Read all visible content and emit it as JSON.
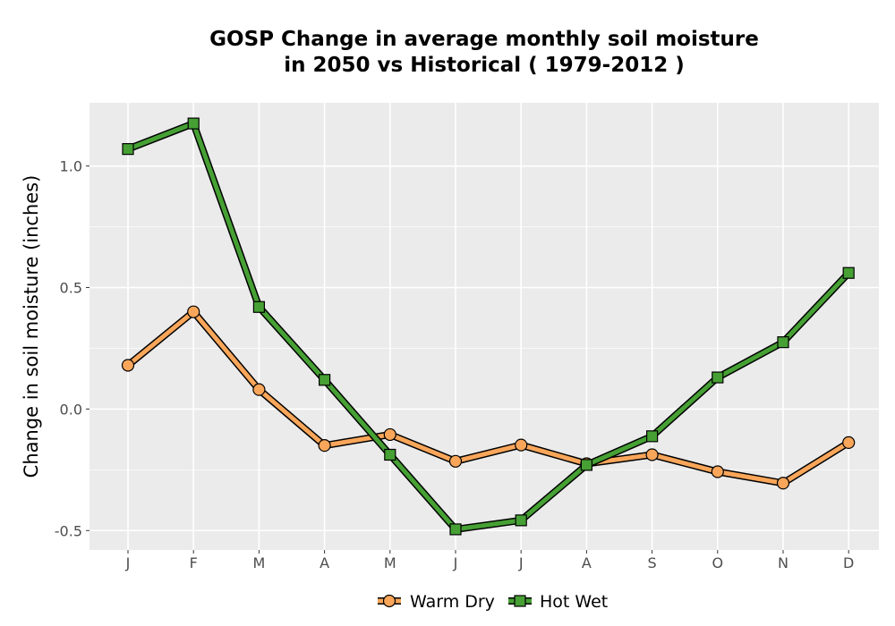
{
  "chart_data": {
    "type": "line",
    "title": "GOSP  Change in average monthly soil moisture\nin 2050 vs Historical ( 1979-2012 )",
    "xlabel": "",
    "ylabel": "Change in soil moisture (inches)",
    "categories": [
      "J",
      "F",
      "M",
      "A",
      "M",
      "J",
      "J",
      "A",
      "S",
      "O",
      "N",
      "D"
    ],
    "yticks": [
      -0.5,
      0.0,
      0.5,
      1.0
    ],
    "ytick_labels": [
      "-0.5",
      "0.0",
      "0.5",
      "1.0"
    ],
    "ylim": [
      -0.58,
      1.26
    ],
    "grid": true,
    "legend_position": "bottom",
    "series": [
      {
        "name": "Warm Dry",
        "color": "#f9a65a",
        "marker": "circle",
        "values": [
          0.18,
          0.4,
          0.08,
          -0.15,
          -0.105,
          -0.215,
          -0.148,
          -0.225,
          -0.188,
          -0.258,
          -0.305,
          -0.138
        ]
      },
      {
        "name": "Hot Wet",
        "color": "#46a034",
        "marker": "square",
        "values": [
          1.07,
          1.175,
          0.42,
          0.12,
          -0.188,
          -0.495,
          -0.458,
          -0.23,
          -0.112,
          0.13,
          0.275,
          0.56
        ]
      }
    ]
  }
}
